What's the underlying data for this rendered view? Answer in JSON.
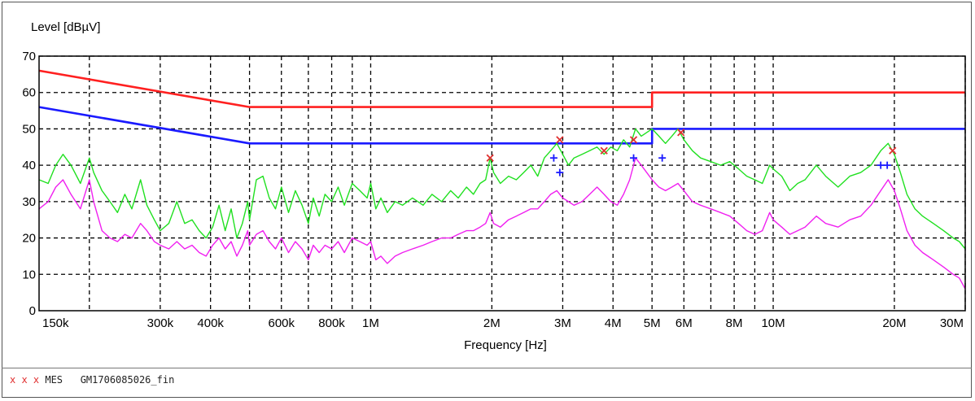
{
  "chart_data": {
    "type": "line",
    "ylabel": "Level [dBµV]",
    "xlabel": "Frequency [Hz]",
    "x_scale": "log",
    "xlim": [
      150000,
      30000000
    ],
    "ylim": [
      0,
      70
    ],
    "grid": true,
    "x_ticks": [
      {
        "value": 150000,
        "label": "150k"
      },
      {
        "value": 300000,
        "label": "300k"
      },
      {
        "value": 400000,
        "label": "400k"
      },
      {
        "value": 600000,
        "label": "600k"
      },
      {
        "value": 800000,
        "label": "800k"
      },
      {
        "value": 1000000,
        "label": "1M"
      },
      {
        "value": 2000000,
        "label": "2M"
      },
      {
        "value": 3000000,
        "label": "3M"
      },
      {
        "value": 4000000,
        "label": "4M"
      },
      {
        "value": 5000000,
        "label": "5M"
      },
      {
        "value": 6000000,
        "label": "6M"
      },
      {
        "value": 8000000,
        "label": "8M"
      },
      {
        "value": 10000000,
        "label": "10M"
      },
      {
        "value": 20000000,
        "label": "20M"
      },
      {
        "value": 30000000,
        "label": "30M"
      }
    ],
    "x_gridlines": [
      150000,
      200000,
      300000,
      400000,
      500000,
      600000,
      700000,
      800000,
      900000,
      1000000,
      2000000,
      3000000,
      4000000,
      5000000,
      6000000,
      7000000,
      8000000,
      9000000,
      10000000,
      20000000,
      30000000
    ],
    "y_ticks": [
      0,
      10,
      20,
      30,
      40,
      50,
      60,
      70
    ],
    "series": [
      {
        "color": "#ff2020",
        "style": "limit",
        "points": [
          [
            150000,
            66
          ],
          [
            500000,
            56
          ],
          [
            5000000,
            56
          ],
          [
            5000000,
            60
          ],
          [
            30000000,
            60
          ]
        ]
      },
      {
        "color": "#1a1aff",
        "style": "limit",
        "points": [
          [
            150000,
            56
          ],
          [
            500000,
            46
          ],
          [
            5000000,
            46
          ],
          [
            5000000,
            50
          ],
          [
            30000000,
            50
          ]
        ]
      },
      {
        "color": "#20e020",
        "style": "trace",
        "points": [
          [
            150000,
            36
          ],
          [
            158000,
            35
          ],
          [
            165000,
            40
          ],
          [
            172000,
            43
          ],
          [
            180000,
            40
          ],
          [
            190000,
            35
          ],
          [
            200000,
            42
          ],
          [
            205000,
            38
          ],
          [
            215000,
            33
          ],
          [
            225000,
            30
          ],
          [
            235000,
            27
          ],
          [
            245000,
            32
          ],
          [
            255000,
            28
          ],
          [
            268000,
            36
          ],
          [
            278000,
            29
          ],
          [
            290000,
            25
          ],
          [
            300000,
            22
          ],
          [
            315000,
            24
          ],
          [
            330000,
            30
          ],
          [
            345000,
            24
          ],
          [
            360000,
            25
          ],
          [
            375000,
            22
          ],
          [
            390000,
            20
          ],
          [
            405000,
            23
          ],
          [
            420000,
            29
          ],
          [
            435000,
            22
          ],
          [
            450000,
            28
          ],
          [
            465000,
            20
          ],
          [
            480000,
            24
          ],
          [
            495000,
            30
          ],
          [
            500000,
            25
          ],
          [
            520000,
            36
          ],
          [
            540000,
            37
          ],
          [
            560000,
            31
          ],
          [
            580000,
            28
          ],
          [
            600000,
            34
          ],
          [
            625000,
            27
          ],
          [
            650000,
            33
          ],
          [
            675000,
            29
          ],
          [
            700000,
            24
          ],
          [
            720000,
            31
          ],
          [
            745000,
            26
          ],
          [
            770000,
            32
          ],
          [
            800000,
            30
          ],
          [
            830000,
            34
          ],
          [
            860000,
            29
          ],
          [
            900000,
            35
          ],
          [
            940000,
            33
          ],
          [
            980000,
            31
          ],
          [
            1000000,
            35
          ],
          [
            1030000,
            28
          ],
          [
            1060000,
            31
          ],
          [
            1100000,
            27
          ],
          [
            1150000,
            30
          ],
          [
            1200000,
            29
          ],
          [
            1270000,
            31
          ],
          [
            1350000,
            29
          ],
          [
            1420000,
            32
          ],
          [
            1500000,
            30
          ],
          [
            1580000,
            33
          ],
          [
            1650000,
            31
          ],
          [
            1730000,
            34
          ],
          [
            1800000,
            32
          ],
          [
            1870000,
            35
          ],
          [
            1930000,
            36
          ],
          [
            1980000,
            42
          ],
          [
            2020000,
            38
          ],
          [
            2100000,
            35
          ],
          [
            2200000,
            37
          ],
          [
            2300000,
            36
          ],
          [
            2400000,
            38
          ],
          [
            2500000,
            40
          ],
          [
            2600000,
            37
          ],
          [
            2700000,
            42
          ],
          [
            2800000,
            44
          ],
          [
            2900000,
            46
          ],
          [
            3000000,
            43
          ],
          [
            3100000,
            40
          ],
          [
            3200000,
            42
          ],
          [
            3350000,
            43
          ],
          [
            3500000,
            44
          ],
          [
            3650000,
            45
          ],
          [
            3800000,
            43
          ],
          [
            3950000,
            45
          ],
          [
            4100000,
            44
          ],
          [
            4250000,
            47
          ],
          [
            4400000,
            45
          ],
          [
            4550000,
            50
          ],
          [
            4700000,
            48
          ],
          [
            4850000,
            49
          ],
          [
            5000000,
            50
          ],
          [
            5200000,
            48
          ],
          [
            5400000,
            46
          ],
          [
            5600000,
            48
          ],
          [
            5800000,
            50
          ],
          [
            6000000,
            47
          ],
          [
            6300000,
            44
          ],
          [
            6600000,
            42
          ],
          [
            7000000,
            41
          ],
          [
            7400000,
            40
          ],
          [
            7800000,
            41
          ],
          [
            8200000,
            39
          ],
          [
            8600000,
            37
          ],
          [
            9000000,
            36
          ],
          [
            9400000,
            35
          ],
          [
            9800000,
            40
          ],
          [
            10000000,
            39
          ],
          [
            10500000,
            37
          ],
          [
            11000000,
            33
          ],
          [
            11500000,
            35
          ],
          [
            12000000,
            36
          ],
          [
            12800000,
            40
          ],
          [
            13500000,
            37
          ],
          [
            14500000,
            34
          ],
          [
            15500000,
            37
          ],
          [
            16500000,
            38
          ],
          [
            17500000,
            40
          ],
          [
            18500000,
            44
          ],
          [
            19300000,
            46
          ],
          [
            20000000,
            43
          ],
          [
            20700000,
            38
          ],
          [
            21500000,
            32
          ],
          [
            22500000,
            28
          ],
          [
            23500000,
            26
          ],
          [
            25000000,
            24
          ],
          [
            26500000,
            22
          ],
          [
            28000000,
            20
          ],
          [
            29000000,
            19
          ],
          [
            30000000,
            17
          ]
        ]
      },
      {
        "color": "#f020f0",
        "style": "trace",
        "points": [
          [
            150000,
            28
          ],
          [
            158000,
            30
          ],
          [
            165000,
            34
          ],
          [
            172000,
            36
          ],
          [
            180000,
            32
          ],
          [
            190000,
            28
          ],
          [
            200000,
            36
          ],
          [
            205000,
            30
          ],
          [
            215000,
            22
          ],
          [
            225000,
            20
          ],
          [
            235000,
            19
          ],
          [
            245000,
            21
          ],
          [
            255000,
            20
          ],
          [
            268000,
            24
          ],
          [
            278000,
            22
          ],
          [
            290000,
            19
          ],
          [
            300000,
            18
          ],
          [
            315000,
            17
          ],
          [
            330000,
            19
          ],
          [
            345000,
            17
          ],
          [
            360000,
            18
          ],
          [
            375000,
            16
          ],
          [
            390000,
            15
          ],
          [
            405000,
            18
          ],
          [
            420000,
            20
          ],
          [
            435000,
            17
          ],
          [
            450000,
            19
          ],
          [
            465000,
            15
          ],
          [
            480000,
            18
          ],
          [
            495000,
            22
          ],
          [
            500000,
            18
          ],
          [
            520000,
            21
          ],
          [
            540000,
            22
          ],
          [
            560000,
            19
          ],
          [
            580000,
            17
          ],
          [
            600000,
            20
          ],
          [
            625000,
            16
          ],
          [
            650000,
            19
          ],
          [
            675000,
            17
          ],
          [
            700000,
            14
          ],
          [
            720000,
            18
          ],
          [
            745000,
            16
          ],
          [
            770000,
            18
          ],
          [
            800000,
            17
          ],
          [
            830000,
            19
          ],
          [
            860000,
            16
          ],
          [
            900000,
            20
          ],
          [
            940000,
            19
          ],
          [
            980000,
            18
          ],
          [
            1000000,
            19
          ],
          [
            1030000,
            14
          ],
          [
            1060000,
            15
          ],
          [
            1100000,
            13
          ],
          [
            1150000,
            15
          ],
          [
            1200000,
            16
          ],
          [
            1270000,
            17
          ],
          [
            1350000,
            18
          ],
          [
            1420000,
            19
          ],
          [
            1500000,
            20
          ],
          [
            1580000,
            20
          ],
          [
            1650000,
            21
          ],
          [
            1730000,
            22
          ],
          [
            1800000,
            22
          ],
          [
            1870000,
            23
          ],
          [
            1930000,
            24
          ],
          [
            1980000,
            27
          ],
          [
            2020000,
            24
          ],
          [
            2100000,
            23
          ],
          [
            2200000,
            25
          ],
          [
            2300000,
            26
          ],
          [
            2400000,
            27
          ],
          [
            2500000,
            28
          ],
          [
            2600000,
            28
          ],
          [
            2700000,
            30
          ],
          [
            2800000,
            32
          ],
          [
            2900000,
            33
          ],
          [
            3000000,
            31
          ],
          [
            3100000,
            30
          ],
          [
            3200000,
            29
          ],
          [
            3350000,
            30
          ],
          [
            3500000,
            32
          ],
          [
            3650000,
            34
          ],
          [
            3800000,
            32
          ],
          [
            3950000,
            30
          ],
          [
            4100000,
            29
          ],
          [
            4250000,
            32
          ],
          [
            4400000,
            36
          ],
          [
            4550000,
            42
          ],
          [
            4700000,
            40
          ],
          [
            4850000,
            38
          ],
          [
            5000000,
            36
          ],
          [
            5200000,
            34
          ],
          [
            5400000,
            33
          ],
          [
            5600000,
            34
          ],
          [
            5800000,
            35
          ],
          [
            6000000,
            33
          ],
          [
            6300000,
            30
          ],
          [
            6600000,
            29
          ],
          [
            7000000,
            28
          ],
          [
            7400000,
            27
          ],
          [
            7800000,
            26
          ],
          [
            8200000,
            24
          ],
          [
            8600000,
            22
          ],
          [
            9000000,
            21
          ],
          [
            9400000,
            22
          ],
          [
            9800000,
            27
          ],
          [
            10000000,
            25
          ],
          [
            10500000,
            23
          ],
          [
            11000000,
            21
          ],
          [
            11500000,
            22
          ],
          [
            12000000,
            23
          ],
          [
            12800000,
            26
          ],
          [
            13500000,
            24
          ],
          [
            14500000,
            23
          ],
          [
            15500000,
            25
          ],
          [
            16500000,
            26
          ],
          [
            17500000,
            29
          ],
          [
            18500000,
            33
          ],
          [
            19300000,
            36
          ],
          [
            20000000,
            33
          ],
          [
            20700000,
            28
          ],
          [
            21500000,
            22
          ],
          [
            22500000,
            18
          ],
          [
            23500000,
            16
          ],
          [
            25000000,
            14
          ],
          [
            26500000,
            12
          ],
          [
            28000000,
            10
          ],
          [
            29000000,
            9
          ],
          [
            30000000,
            6
          ]
        ]
      }
    ],
    "markers_x": {
      "color": "#e03030",
      "points": [
        [
          1980000,
          42
        ],
        [
          2950000,
          47
        ],
        [
          3800000,
          44
        ],
        [
          4500000,
          47
        ],
        [
          5900000,
          49
        ],
        [
          19800000,
          44
        ]
      ]
    },
    "markers_plus": {
      "color": "#1a1aff",
      "points": [
        [
          2850000,
          42
        ],
        [
          2950000,
          38
        ],
        [
          4500000,
          42
        ],
        [
          5300000,
          42
        ],
        [
          18500000,
          40
        ],
        [
          19200000,
          40
        ]
      ]
    }
  },
  "legend": {
    "marks": "x x x",
    "text": "MES   GM1706085026_fin"
  }
}
